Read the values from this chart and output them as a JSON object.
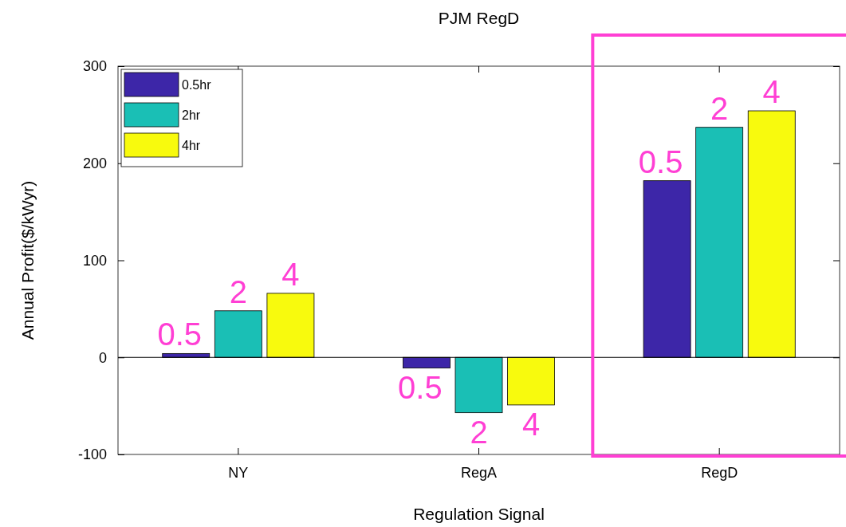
{
  "chart_data": {
    "type": "bar",
    "title": "PJM RegD",
    "xlabel": "Regulation Signal",
    "ylabel": "Annual Profit($/kWyr)",
    "categories": [
      "NY",
      "RegA",
      "RegD"
    ],
    "series": [
      {
        "name": "0.5hr",
        "color": "#3d26a8",
        "values": [
          4,
          -11,
          182
        ]
      },
      {
        "name": "2hr",
        "color": "#1abfb5",
        "values": [
          48,
          -57,
          237
        ]
      },
      {
        "name": "4hr",
        "color": "#f8fa0d",
        "values": [
          66,
          -49,
          254
        ]
      }
    ],
    "ylim": [
      -100,
      300
    ],
    "yticks": [
      -100,
      0,
      100,
      200,
      300
    ],
    "grid": false,
    "legend": "top left",
    "ref_lines": [
      {
        "axis": "y",
        "value": 0,
        "color": "#000000"
      }
    ],
    "annotations": [
      "0.5",
      "2",
      "4",
      "0.5",
      "2",
      "4",
      "0.5",
      "2",
      "4"
    ]
  }
}
